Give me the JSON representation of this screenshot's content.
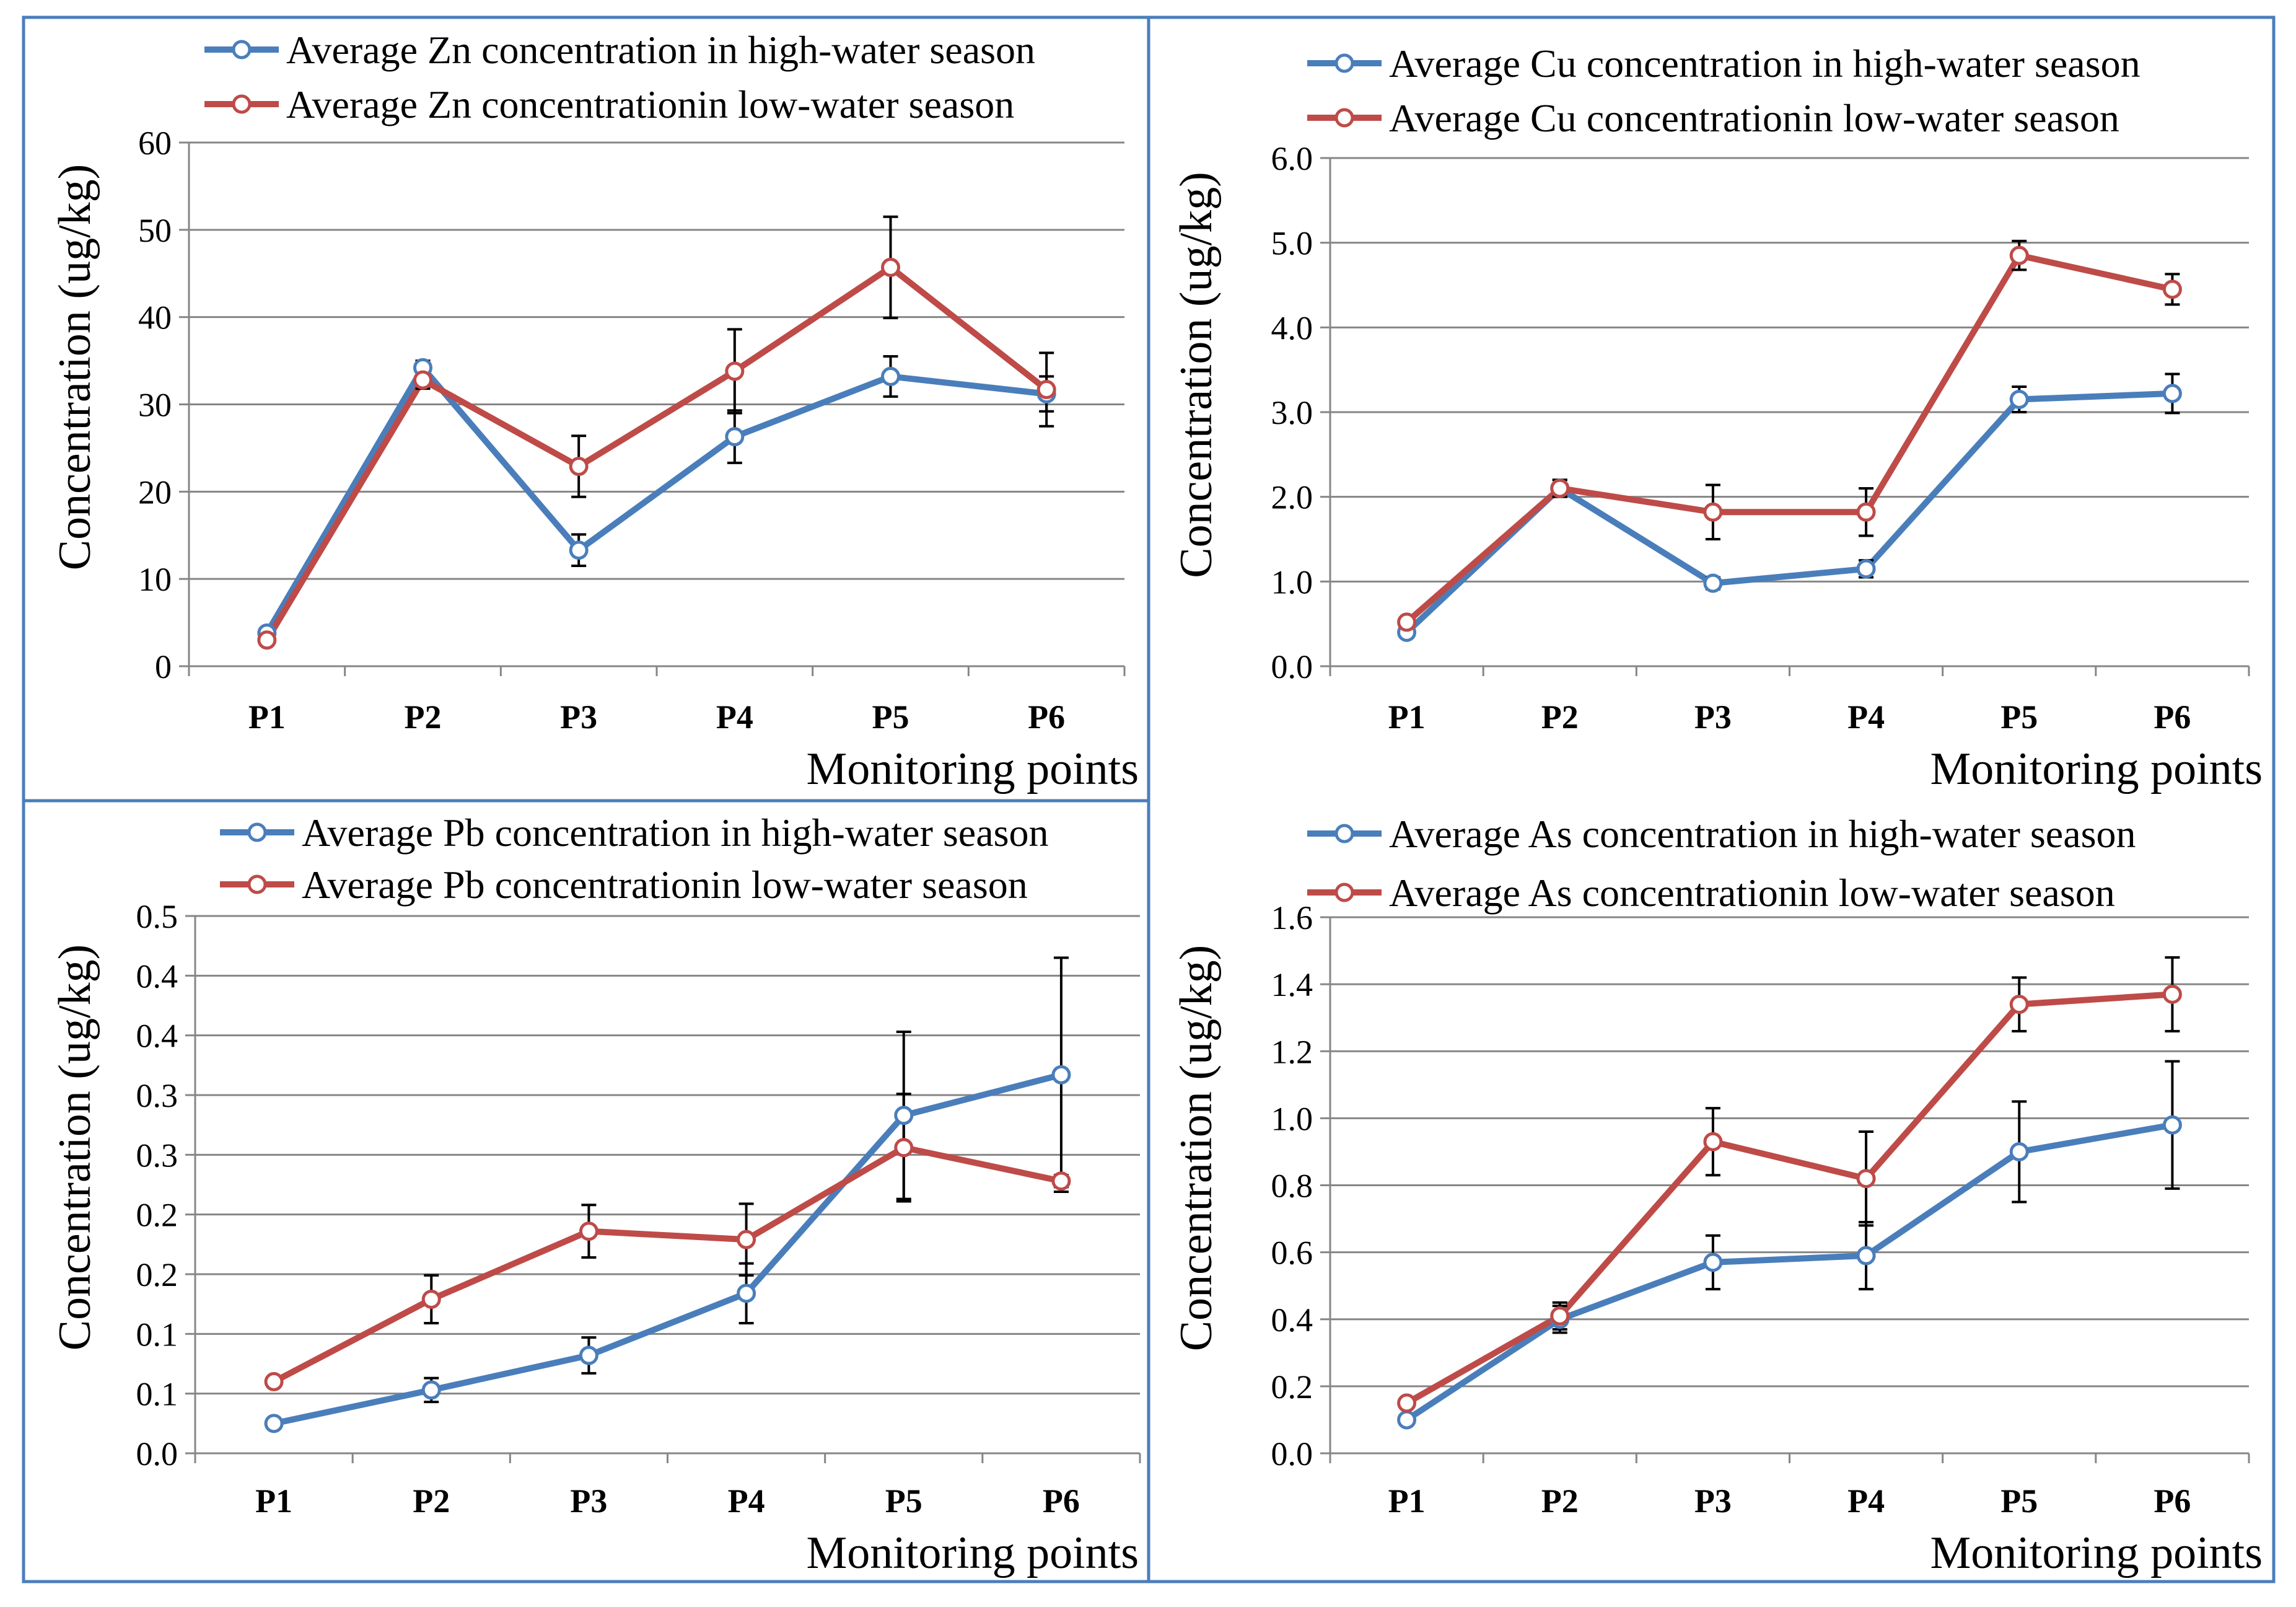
{
  "colors": {
    "high": "#4a7ebb",
    "low": "#be4b48",
    "frame": "#4a7ebb",
    "grid": "#868686",
    "err": "#000000"
  },
  "chart_data": [
    {
      "id": "zn",
      "type": "line",
      "categories": [
        "P1",
        "P2",
        "P3",
        "P4",
        "P5",
        "P6"
      ],
      "series": [
        {
          "name": "Average Zn concentration in high-water season",
          "key": "high",
          "values": [
            3.8,
            34.2,
            13.3,
            26.3,
            33.2,
            31.2
          ],
          "err": [
            0,
            0.8,
            1.8,
            3.0,
            2.3,
            2.0
          ]
        },
        {
          "name": "Average Zn concentrationin low-water season",
          "key": "low",
          "values": [
            3.0,
            32.8,
            22.9,
            33.8,
            45.7,
            31.7
          ],
          "err": [
            0,
            1.0,
            3.5,
            4.8,
            5.8,
            4.2
          ]
        }
      ],
      "yticks": [
        "0",
        "10",
        "20",
        "30",
        "40",
        "50",
        "60"
      ],
      "ylim": [
        0,
        60
      ],
      "ylabel": "Concentration (ug/kg)",
      "xlabel": "Monitoring points"
    },
    {
      "id": "cu",
      "type": "line",
      "categories": [
        "P1",
        "P2",
        "P3",
        "P4",
        "P5",
        "P6"
      ],
      "series": [
        {
          "name": "Average Cu concentration in high-water season",
          "key": "high",
          "values": [
            0.4,
            2.1,
            0.98,
            1.15,
            3.15,
            3.22
          ],
          "err": [
            0,
            0.1,
            0.07,
            0.1,
            0.15,
            0.23
          ]
        },
        {
          "name": "Average Cu concentrationin low-water season",
          "key": "low",
          "values": [
            0.52,
            2.1,
            1.82,
            1.82,
            4.85,
            4.45
          ],
          "err": [
            0,
            0.1,
            0.32,
            0.28,
            0.17,
            0.18
          ]
        }
      ],
      "yticks": [
        "0.0",
        "1.0",
        "2.0",
        "3.0",
        "4.0",
        "5.0",
        "6.0"
      ],
      "ylim": [
        0,
        6
      ],
      "ylabel": "Concentration (ug/kg)",
      "xlabel": "Monitoring points"
    },
    {
      "id": "pb",
      "type": "line",
      "categories": [
        "P1",
        "P2",
        "P3",
        "P4",
        "P5",
        "P6"
      ],
      "series": [
        {
          "name": "Average Pb concentration in high-water season",
          "key": "high",
          "values": [
            0.025,
            0.053,
            0.082,
            0.134,
            0.283,
            0.317
          ],
          "err": [
            0,
            0.01,
            0.015,
            0.025,
            0.07,
            0.098
          ]
        },
        {
          "name": "Average Pb concentrationin low-water season",
          "key": "low",
          "values": [
            0.06,
            0.129,
            0.186,
            0.179,
            0.256,
            0.228
          ],
          "err": [
            0,
            0.02,
            0.022,
            0.03,
            0.045,
            0.005
          ]
        }
      ],
      "yticks": [
        "0.0",
        "0.1",
        "0.1",
        "0.2",
        "0.2",
        "0.3",
        "0.3",
        "0.4",
        "0.4",
        "0.5"
      ],
      "ylim": [
        0,
        0.45
      ],
      "ylabel": "Concentration (ug/kg)",
      "xlabel": "Monitoring points"
    },
    {
      "id": "as",
      "type": "line",
      "categories": [
        "P1",
        "P2",
        "P3",
        "P4",
        "P5",
        "P6"
      ],
      "series": [
        {
          "name": "Average As concentration in high-water season",
          "key": "high",
          "values": [
            0.1,
            0.4,
            0.57,
            0.59,
            0.9,
            0.98
          ],
          "err": [
            0,
            0.04,
            0.08,
            0.1,
            0.15,
            0.19
          ]
        },
        {
          "name": "Average As concentrationin low-water season",
          "key": "low",
          "values": [
            0.15,
            0.41,
            0.93,
            0.82,
            1.34,
            1.37
          ],
          "err": [
            0,
            0.04,
            0.1,
            0.14,
            0.08,
            0.11
          ]
        }
      ],
      "yticks": [
        "0.0",
        "0.2",
        "0.4",
        "0.6",
        "0.8",
        "1.0",
        "1.2",
        "1.4",
        "1.6"
      ],
      "ylim": [
        0,
        1.6
      ],
      "ylabel": "Concentration (ug/kg)",
      "xlabel": "Monitoring points"
    }
  ]
}
